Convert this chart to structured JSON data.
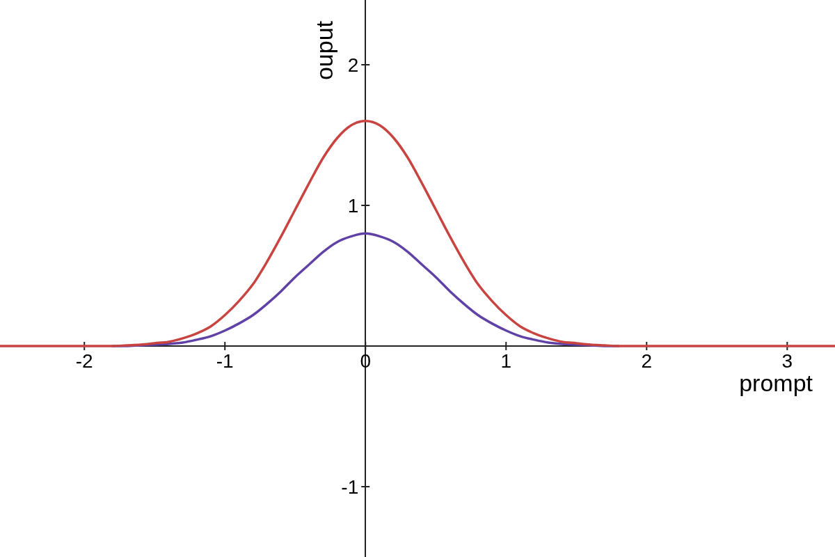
{
  "chart_data": {
    "type": "line",
    "xlabel": "prompt",
    "ylabel": "ouput",
    "xlim": [
      -2.6,
      3.34
    ],
    "ylim": [
      -1.5,
      2.46
    ],
    "xticks": [
      -2,
      -1,
      0,
      1,
      2,
      3
    ],
    "yticks": [
      -1,
      1,
      2
    ],
    "marker": "none",
    "legend": false,
    "series": [
      {
        "color": "#6042a6",
        "x": [
          -1.8,
          -1.7,
          -1.6,
          -1.5,
          -1.4,
          -1.3,
          -1.2,
          -1.1,
          -1.0,
          -0.9,
          -0.8,
          -0.7,
          -0.6,
          -0.5,
          -0.4,
          -0.3,
          -0.2,
          -0.1,
          0,
          0.1,
          0.2,
          0.3,
          0.4,
          0.5,
          0.6,
          0.7,
          0.8,
          0.9,
          1.0,
          1.1,
          1.2,
          1.3,
          1.4,
          1.5,
          1.6,
          1.7,
          1.8
        ],
        "values": [
          0,
          0,
          0.005,
          0.01,
          0.015,
          0.025,
          0.045,
          0.07,
          0.11,
          0.16,
          0.22,
          0.3,
          0.39,
          0.49,
          0.58,
          0.67,
          0.74,
          0.78,
          0.8,
          0.78,
          0.74,
          0.67,
          0.58,
          0.49,
          0.39,
          0.3,
          0.22,
          0.16,
          0.11,
          0.07,
          0.045,
          0.025,
          0.015,
          0.01,
          0.005,
          0,
          0
        ]
      },
      {
        "color": "#c74440",
        "x": [
          -2.6,
          -2.2,
          -1.8,
          -1.7,
          -1.6,
          -1.5,
          -1.4,
          -1.3,
          -1.2,
          -1.1,
          -1.0,
          -0.9,
          -0.8,
          -0.7,
          -0.6,
          -0.5,
          -0.4,
          -0.3,
          -0.2,
          -0.1,
          0,
          0.1,
          0.2,
          0.3,
          0.4,
          0.5,
          0.6,
          0.7,
          0.8,
          0.9,
          1.0,
          1.1,
          1.2,
          1.3,
          1.4,
          1.5,
          1.6,
          1.7,
          1.8,
          2.2,
          2.6,
          3.0,
          3.34
        ],
        "values": [
          0,
          0,
          0,
          0.005,
          0.01,
          0.02,
          0.03,
          0.055,
          0.09,
          0.14,
          0.22,
          0.32,
          0.44,
          0.6,
          0.78,
          0.97,
          1.16,
          1.34,
          1.48,
          1.57,
          1.6,
          1.57,
          1.48,
          1.34,
          1.16,
          0.97,
          0.78,
          0.6,
          0.44,
          0.32,
          0.22,
          0.14,
          0.09,
          0.055,
          0.03,
          0.02,
          0.01,
          0.005,
          0,
          0,
          0,
          0,
          0
        ]
      }
    ]
  }
}
